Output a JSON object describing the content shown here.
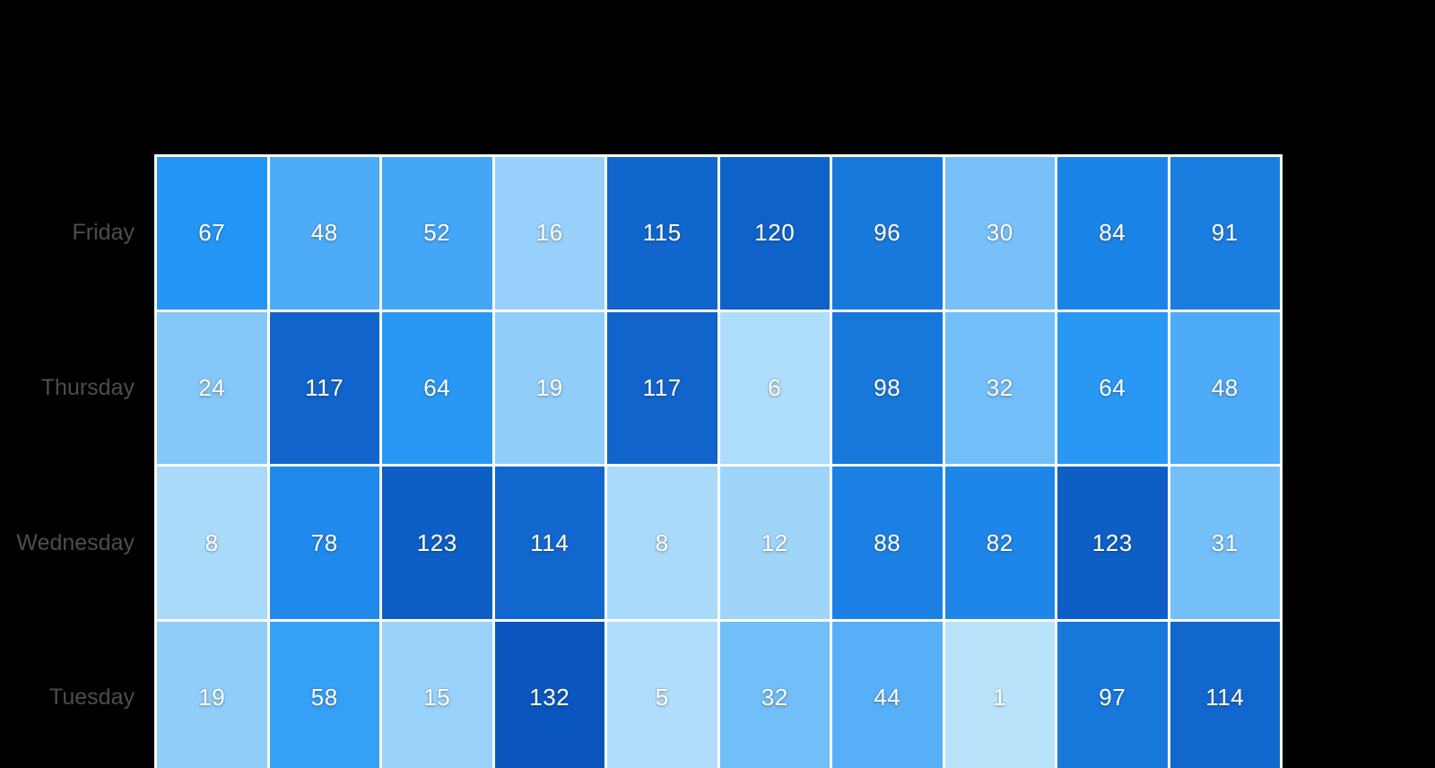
{
  "chart_data": {
    "type": "heatmap",
    "title": "",
    "row_labels": [
      "Friday",
      "Thursday",
      "Wednesday",
      "Tuesday"
    ],
    "num_columns": 10,
    "column_labels_visible": false,
    "values": [
      [
        67,
        48,
        52,
        16,
        115,
        120,
        96,
        30,
        84,
        91
      ],
      [
        24,
        117,
        64,
        19,
        117,
        6,
        98,
        32,
        64,
        48
      ],
      [
        8,
        78,
        123,
        114,
        8,
        12,
        88,
        82,
        123,
        31
      ],
      [
        19,
        58,
        15,
        132,
        5,
        32,
        44,
        1,
        97,
        114
      ]
    ],
    "value_domain": [
      1,
      132
    ],
    "color_scale": {
      "low": "#b9e2fb",
      "mid": "#2395f5",
      "high": "#0a56be"
    },
    "grid_color": "#ffffff",
    "background_color": "#000000",
    "cell_text_color": "#ffffff",
    "row_label_color": "#4d4d4d"
  }
}
